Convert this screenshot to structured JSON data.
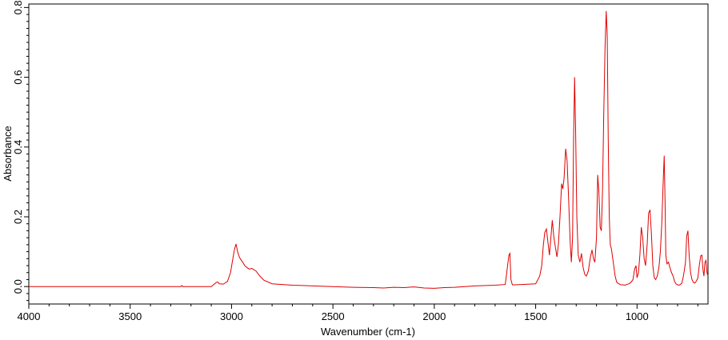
{
  "chart_data": {
    "type": "line",
    "title": "",
    "xlabel": "Wavenumber (cm-1)",
    "ylabel": "Absorbance",
    "xlim": [
      4000,
      650
    ],
    "ylim": [
      -0.05,
      0.81
    ],
    "x_reversed": true,
    "grid": false,
    "legend": "none",
    "x_ticks": [
      4000,
      3500,
      3000,
      2500,
      2000,
      1500,
      1000
    ],
    "x_tick_labels": [
      "4000",
      "3500",
      "3000",
      "2500",
      "2000",
      "1500",
      "1000"
    ],
    "y_ticks": [
      0.0,
      0.2,
      0.4,
      0.6,
      0.8
    ],
    "y_tick_labels": [
      "0.0",
      "0.2",
      "0.4",
      "0.6",
      "0.8"
    ],
    "line_color": "#e00000",
    "series": [
      {
        "x": [
          4000,
          3500,
          3250,
          3245,
          3240,
          3100,
          3075,
          3068,
          3060,
          3040,
          3020,
          3005,
          2995,
          2985,
          2978,
          2970,
          2962,
          2955,
          2945,
          2935,
          2925,
          2912,
          2900,
          2880,
          2860,
          2840,
          2800,
          2700,
          2600,
          2500,
          2400,
          2300,
          2250,
          2200,
          2150,
          2100,
          2050,
          2000,
          1950,
          1900,
          1800,
          1700,
          1650,
          1632,
          1627,
          1622,
          1615,
          1600,
          1500,
          1480,
          1470,
          1462,
          1455,
          1447,
          1440,
          1432,
          1425,
          1418,
          1410,
          1402,
          1395,
          1388,
          1380,
          1372,
          1366,
          1360,
          1352,
          1345,
          1338,
          1330,
          1324,
          1318,
          1313,
          1308,
          1303,
          1297,
          1290,
          1282,
          1274,
          1266,
          1258,
          1250,
          1240,
          1230,
          1222,
          1215,
          1208,
          1200,
          1194,
          1188,
          1182,
          1176,
          1170,
          1164,
          1158,
          1152,
          1147,
          1142,
          1137,
          1132,
          1127,
          1122,
          1115,
          1108,
          1100,
          1090,
          1080,
          1070,
          1060,
          1050,
          1040,
          1030,
          1020,
          1012,
          1005,
          1000,
          993,
          986,
          979,
          972,
          965,
          958,
          950,
          943,
          936,
          929,
          922,
          915,
          908,
          900,
          892,
          885,
          878,
          871,
          866,
          862,
          858,
          852,
          845,
          838,
          830,
          822,
          815,
          808,
          800,
          793,
          786,
          779,
          773,
          767,
          761,
          755,
          749,
          743,
          736,
          729,
          722,
          715,
          708,
          700,
          693,
          686,
          680,
          675,
          670,
          665,
          660,
          655,
          650
        ],
        "y": [
          0.0,
          0.0,
          0.0,
          0.003,
          0.0,
          0.0,
          0.012,
          0.013,
          0.008,
          0.007,
          0.015,
          0.04,
          0.075,
          0.108,
          0.122,
          0.1,
          0.085,
          0.078,
          0.07,
          0.06,
          0.055,
          0.05,
          0.052,
          0.045,
          0.03,
          0.018,
          0.008,
          0.004,
          0.002,
          0.0,
          -0.002,
          -0.003,
          -0.004,
          -0.002,
          -0.003,
          -0.001,
          -0.004,
          -0.005,
          -0.003,
          -0.002,
          0.002,
          0.004,
          0.006,
          0.09,
          0.095,
          0.02,
          0.005,
          0.005,
          0.008,
          0.03,
          0.06,
          0.12,
          0.155,
          0.165,
          0.13,
          0.09,
          0.14,
          0.19,
          0.14,
          0.11,
          0.085,
          0.12,
          0.2,
          0.295,
          0.28,
          0.31,
          0.395,
          0.36,
          0.26,
          0.13,
          0.07,
          0.14,
          0.42,
          0.6,
          0.45,
          0.2,
          0.09,
          0.07,
          0.095,
          0.055,
          0.035,
          0.03,
          0.045,
          0.085,
          0.105,
          0.08,
          0.07,
          0.14,
          0.32,
          0.27,
          0.17,
          0.16,
          0.28,
          0.5,
          0.68,
          0.79,
          0.72,
          0.42,
          0.2,
          0.12,
          0.11,
          0.09,
          0.06,
          0.03,
          0.012,
          0.008,
          0.005,
          0.005,
          0.004,
          0.006,
          0.008,
          0.012,
          0.02,
          0.05,
          0.06,
          0.025,
          0.04,
          0.09,
          0.17,
          0.14,
          0.08,
          0.06,
          0.12,
          0.21,
          0.22,
          0.15,
          0.06,
          0.025,
          0.02,
          0.03,
          0.055,
          0.1,
          0.18,
          0.3,
          0.375,
          0.25,
          0.09,
          0.065,
          0.07,
          0.055,
          0.04,
          0.03,
          0.015,
          0.008,
          0.005,
          0.004,
          0.006,
          0.01,
          0.025,
          0.045,
          0.07,
          0.145,
          0.16,
          0.09,
          0.04,
          0.02,
          0.012,
          0.01,
          0.015,
          0.025,
          0.06,
          0.088,
          0.09,
          0.05,
          0.03,
          0.07,
          0.075,
          0.04,
          0.03
        ]
      }
    ]
  }
}
